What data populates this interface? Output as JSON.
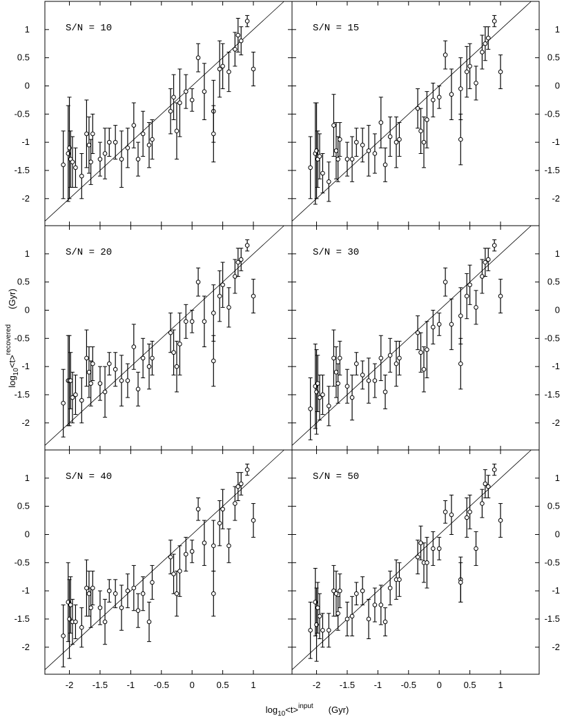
{
  "figure": {
    "xlabel": {
      "base": "log",
      "sub": "10",
      "main": "<t>",
      "sup": "input",
      "unit": "(Gyr)"
    },
    "ylabel": {
      "base": "log",
      "sub": "10",
      "main": "<t>",
      "sup": "recovered",
      "unit": "(Gyr)"
    }
  },
  "chart_data": [
    {
      "type": "scatter",
      "title": "S/N = 10",
      "x": [
        -2.1,
        -2.02,
        -2.0,
        -1.98,
        -1.95,
        -1.9,
        -1.8,
        -1.72,
        -1.68,
        -1.65,
        -1.62,
        -1.5,
        -1.42,
        -1.35,
        -1.25,
        -1.15,
        -1.05,
        -0.95,
        -0.88,
        -0.8,
        -0.7,
        -0.65,
        -0.35,
        -0.3,
        -0.25,
        -0.2,
        -0.1,
        0.0,
        0.1,
        0.2,
        0.35,
        0.35,
        0.45,
        0.5,
        0.6,
        0.7,
        0.75,
        0.8,
        0.9,
        1.0
      ],
      "values": [
        -1.4,
        -1.2,
        -1.1,
        -1.3,
        -1.35,
        -1.45,
        -1.6,
        -0.85,
        -1.05,
        -1.35,
        -0.85,
        -1.3,
        -1.2,
        -1.0,
        -1.0,
        -1.3,
        -1.1,
        -0.7,
        -1.3,
        -0.85,
        -1.05,
        -0.95,
        -0.45,
        -0.2,
        -0.8,
        -0.3,
        -0.1,
        -0.25,
        0.5,
        -0.1,
        -0.45,
        -0.85,
        0.3,
        0.35,
        0.25,
        0.65,
        0.9,
        0.8,
        1.15,
        0.3
      ],
      "errors": [
        0.6,
        0.85,
        0.9,
        0.5,
        0.45,
        0.35,
        0.4,
        0.6,
        0.5,
        0.4,
        0.35,
        0.3,
        0.45,
        0.25,
        0.3,
        0.5,
        0.35,
        0.4,
        0.3,
        0.4,
        0.4,
        0.35,
        0.4,
        0.4,
        0.5,
        0.6,
        0.3,
        0.2,
        0.25,
        0.5,
        0.55,
        0.5,
        0.5,
        0.4,
        0.35,
        0.3,
        0.3,
        0.25,
        0.1,
        0.3
      ],
      "xlim": [
        -2.4,
        1.63
      ],
      "ylim": [
        -2.48,
        1.5
      ],
      "xticks": [
        -2,
        -1.5,
        -1,
        -0.5,
        0,
        0.5,
        1
      ],
      "yticks": [
        -2,
        -1.5,
        -1,
        -0.5,
        0,
        0.5,
        1
      ]
    },
    {
      "type": "scatter",
      "title": "S/N = 15",
      "x": [
        -2.1,
        -2.02,
        -2.0,
        -1.98,
        -1.95,
        -1.9,
        -1.8,
        -1.72,
        -1.68,
        -1.65,
        -1.62,
        -1.5,
        -1.42,
        -1.35,
        -1.25,
        -1.15,
        -1.05,
        -0.95,
        -0.88,
        -0.8,
        -0.7,
        -0.65,
        -0.35,
        -0.3,
        -0.25,
        -0.2,
        -0.1,
        0.0,
        0.1,
        0.2,
        0.35,
        0.35,
        0.45,
        0.5,
        0.6,
        0.7,
        0.75,
        0.8,
        0.9,
        1.0
      ],
      "values": [
        -1.45,
        -1.2,
        -1.15,
        -1.3,
        -1.25,
        -1.55,
        -1.7,
        -0.7,
        -1.15,
        -1.3,
        -0.95,
        -1.3,
        -1.3,
        -1.0,
        -1.05,
        -1.15,
        -1.2,
        -0.65,
        -1.4,
        -0.9,
        -1.0,
        -0.95,
        -0.4,
        -0.8,
        -1.0,
        -0.6,
        -0.25,
        -0.2,
        0.55,
        -0.15,
        -0.05,
        -0.95,
        0.25,
        0.35,
        0.05,
        0.6,
        0.75,
        0.85,
        1.15,
        0.25
      ],
      "errors": [
        0.55,
        0.9,
        0.85,
        0.5,
        0.4,
        0.35,
        0.35,
        0.55,
        0.5,
        0.4,
        0.3,
        0.3,
        0.4,
        0.25,
        0.3,
        0.45,
        0.35,
        0.45,
        0.3,
        0.35,
        0.45,
        0.3,
        0.35,
        0.4,
        0.45,
        0.5,
        0.3,
        0.2,
        0.25,
        0.45,
        0.55,
        0.45,
        0.45,
        0.4,
        0.3,
        0.3,
        0.3,
        0.2,
        0.1,
        0.3
      ],
      "xlim": [
        -2.4,
        1.63
      ],
      "ylim": [
        -2.48,
        1.5
      ],
      "xticks": [
        -2,
        -1.5,
        -1,
        -0.5,
        0,
        0.5,
        1
      ],
      "yticks": [
        -2,
        -1.5,
        -1,
        -0.5,
        0,
        0.5,
        1
      ]
    },
    {
      "type": "scatter",
      "title": "S/N = 20",
      "x": [
        -2.1,
        -2.02,
        -2.0,
        -1.98,
        -1.95,
        -1.9,
        -1.8,
        -1.72,
        -1.68,
        -1.65,
        -1.62,
        -1.5,
        -1.42,
        -1.35,
        -1.25,
        -1.15,
        -1.05,
        -0.95,
        -0.88,
        -0.8,
        -0.7,
        -0.65,
        -0.35,
        -0.3,
        -0.25,
        -0.2,
        -0.1,
        0.0,
        0.1,
        0.2,
        0.35,
        0.35,
        0.45,
        0.5,
        0.6,
        0.7,
        0.75,
        0.8,
        0.9,
        1.0
      ],
      "values": [
        -1.65,
        -1.25,
        -1.25,
        -1.25,
        -1.55,
        -1.5,
        -1.6,
        -0.85,
        -1.1,
        -1.3,
        -0.95,
        -1.3,
        -1.45,
        -0.95,
        -1.05,
        -1.25,
        -1.25,
        -0.65,
        -1.4,
        -0.85,
        -1.0,
        -0.85,
        -0.4,
        -0.75,
        -1.0,
        -0.6,
        -0.2,
        -0.2,
        0.5,
        -0.2,
        -0.05,
        -0.9,
        0.25,
        0.45,
        0.05,
        0.6,
        0.85,
        0.9,
        1.15,
        0.25
      ],
      "errors": [
        0.6,
        0.8,
        0.8,
        0.5,
        0.45,
        0.35,
        0.4,
        0.5,
        0.45,
        0.4,
        0.3,
        0.3,
        0.45,
        0.2,
        0.3,
        0.45,
        0.3,
        0.4,
        0.3,
        0.35,
        0.4,
        0.3,
        0.35,
        0.4,
        0.45,
        0.55,
        0.3,
        0.2,
        0.25,
        0.45,
        0.5,
        0.45,
        0.45,
        0.4,
        0.35,
        0.3,
        0.25,
        0.2,
        0.1,
        0.3
      ],
      "xlim": [
        -2.4,
        1.63
      ],
      "ylim": [
        -2.48,
        1.5
      ],
      "xticks": [
        -2,
        -1.5,
        -1,
        -0.5,
        0,
        0.5,
        1
      ],
      "yticks": [
        -2,
        -1.5,
        -1,
        -0.5,
        0,
        0.5,
        1
      ]
    },
    {
      "type": "scatter",
      "title": "S/N = 30",
      "x": [
        -2.1,
        -2.02,
        -2.0,
        -1.98,
        -1.95,
        -1.9,
        -1.8,
        -1.72,
        -1.68,
        -1.65,
        -1.62,
        -1.5,
        -1.42,
        -1.35,
        -1.25,
        -1.15,
        -1.05,
        -0.95,
        -0.88,
        -0.8,
        -0.7,
        -0.65,
        -0.35,
        -0.3,
        -0.25,
        -0.2,
        -0.1,
        0.0,
        0.1,
        0.2,
        0.35,
        0.35,
        0.45,
        0.5,
        0.6,
        0.7,
        0.75,
        0.8,
        0.9,
        1.0
      ],
      "values": [
        -1.75,
        -1.35,
        -1.45,
        -1.3,
        -1.55,
        -1.5,
        -1.7,
        -0.85,
        -1.1,
        -1.3,
        -0.85,
        -1.35,
        -1.55,
        -0.95,
        -1.15,
        -1.25,
        -1.25,
        -0.85,
        -1.45,
        -0.8,
        -0.95,
        -0.85,
        -0.4,
        -0.75,
        -1.05,
        -0.7,
        -0.3,
        -0.25,
        0.5,
        -0.25,
        -0.1,
        -0.95,
        0.25,
        0.45,
        0.05,
        0.6,
        0.85,
        0.9,
        1.15,
        0.25
      ],
      "errors": [
        0.55,
        0.75,
        0.75,
        0.5,
        0.4,
        0.35,
        0.35,
        0.5,
        0.45,
        0.35,
        0.3,
        0.3,
        0.4,
        0.2,
        0.25,
        0.4,
        0.3,
        0.4,
        0.3,
        0.3,
        0.4,
        0.3,
        0.3,
        0.35,
        0.4,
        0.5,
        0.3,
        0.2,
        0.25,
        0.45,
        0.5,
        0.45,
        0.4,
        0.35,
        0.3,
        0.3,
        0.25,
        0.2,
        0.1,
        0.3
      ],
      "xlim": [
        -2.4,
        1.63
      ],
      "ylim": [
        -2.48,
        1.5
      ],
      "xticks": [
        -2,
        -1.5,
        -1,
        -0.5,
        0,
        0.5,
        1
      ],
      "yticks": [
        -2,
        -1.5,
        -1,
        -0.5,
        0,
        0.5,
        1
      ]
    },
    {
      "type": "scatter",
      "title": "S/N = 40",
      "x": [
        -2.1,
        -2.02,
        -2.0,
        -1.98,
        -1.95,
        -1.9,
        -1.8,
        -1.72,
        -1.68,
        -1.65,
        -1.62,
        -1.5,
        -1.42,
        -1.35,
        -1.25,
        -1.15,
        -1.05,
        -0.95,
        -0.88,
        -0.8,
        -0.7,
        -0.65,
        -0.35,
        -0.3,
        -0.25,
        -0.2,
        -0.1,
        0.0,
        0.1,
        0.2,
        0.35,
        0.35,
        0.45,
        0.5,
        0.6,
        0.7,
        0.75,
        0.8,
        0.9,
        1.0
      ],
      "values": [
        -1.8,
        -1.2,
        -1.5,
        -1.25,
        -1.55,
        -1.55,
        -1.65,
        -0.95,
        -1.05,
        -1.3,
        -0.95,
        -1.3,
        -1.55,
        -1.0,
        -1.05,
        -1.3,
        -1.0,
        -0.95,
        -1.35,
        -1.05,
        -1.55,
        -0.85,
        -0.4,
        -0.7,
        -1.05,
        -0.65,
        -0.35,
        -0.3,
        0.45,
        -0.15,
        -0.2,
        -1.05,
        0.2,
        0.45,
        -0.2,
        0.55,
        0.85,
        0.9,
        1.15,
        0.25
      ],
      "errors": [
        0.55,
        0.7,
        0.7,
        0.5,
        0.4,
        0.3,
        0.35,
        0.5,
        0.4,
        0.35,
        0.3,
        0.3,
        0.4,
        0.2,
        0.25,
        0.4,
        0.3,
        0.4,
        0.3,
        0.3,
        0.35,
        0.3,
        0.3,
        0.35,
        0.4,
        0.45,
        0.3,
        0.2,
        0.2,
        0.4,
        0.45,
        0.4,
        0.4,
        0.35,
        0.3,
        0.3,
        0.25,
        0.2,
        0.1,
        0.3
      ],
      "xlim": [
        -2.4,
        1.63
      ],
      "ylim": [
        -2.48,
        1.5
      ],
      "xticks": [
        -2,
        -1.5,
        -1,
        -0.5,
        0,
        0.5,
        1
      ],
      "yticks": [
        -2,
        -1.5,
        -1,
        -0.5,
        0,
        0.5,
        1
      ]
    },
    {
      "type": "scatter",
      "title": "S/N = 50",
      "x": [
        -2.1,
        -2.02,
        -2.0,
        -1.98,
        -1.95,
        -1.9,
        -1.8,
        -1.72,
        -1.68,
        -1.65,
        -1.62,
        -1.5,
        -1.42,
        -1.35,
        -1.25,
        -1.15,
        -1.05,
        -0.95,
        -0.88,
        -0.8,
        -0.7,
        -0.65,
        -0.35,
        -0.3,
        -0.25,
        -0.2,
        -0.1,
        0.0,
        0.1,
        0.2,
        0.35,
        0.35,
        0.45,
        0.5,
        0.6,
        0.7,
        0.75,
        0.8,
        0.9,
        1.0
      ],
      "values": [
        -1.7,
        -1.2,
        -1.6,
        -1.3,
        -1.45,
        -1.7,
        -1.7,
        -1.0,
        -1.05,
        -1.4,
        -1.0,
        -1.5,
        -1.45,
        -1.05,
        -1.0,
        -1.5,
        -1.25,
        -1.25,
        -1.55,
        -0.95,
        -0.8,
        -0.8,
        -0.4,
        -0.15,
        -0.5,
        -0.5,
        -0.25,
        -0.25,
        0.4,
        0.35,
        -0.8,
        -0.85,
        0.3,
        0.4,
        -0.25,
        0.55,
        0.9,
        0.85,
        1.15,
        0.25
      ],
      "errors": [
        0.5,
        0.6,
        0.65,
        0.45,
        0.4,
        0.3,
        0.3,
        0.45,
        0.4,
        0.3,
        0.3,
        0.3,
        0.35,
        0.2,
        0.25,
        0.35,
        0.3,
        0.35,
        0.25,
        0.3,
        0.35,
        0.3,
        0.3,
        0.3,
        0.35,
        0.45,
        0.3,
        0.2,
        0.2,
        0.35,
        0.4,
        0.35,
        0.35,
        0.3,
        0.3,
        0.25,
        0.25,
        0.2,
        0.1,
        0.3
      ],
      "xlim": [
        -2.4,
        1.63
      ],
      "ylim": [
        -2.48,
        1.5
      ],
      "xticks": [
        -2,
        -1.5,
        -1,
        -0.5,
        0,
        0.5,
        1
      ],
      "yticks": [
        -2,
        -1.5,
        -1,
        -0.5,
        0,
        0.5,
        1
      ]
    }
  ]
}
